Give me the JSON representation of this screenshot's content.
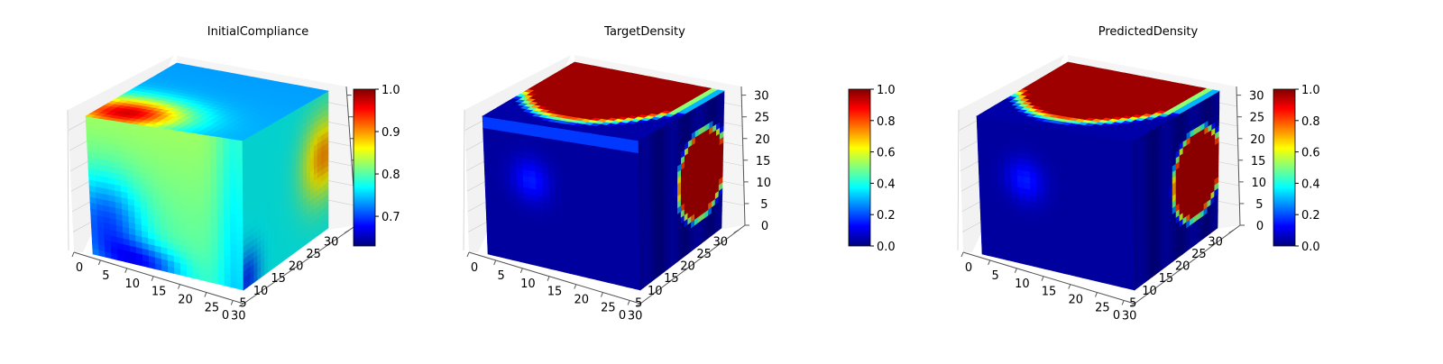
{
  "colormap": "jet",
  "colormap_stops": [
    "#00007f",
    "#0000ff",
    "#007fff",
    "#00ffff",
    "#7fff7f",
    "#ffff00",
    "#ff7f00",
    "#ff0000",
    "#7f0000"
  ],
  "axes_color": "#555555",
  "grid_color": "#cccccc",
  "pane_color": "#f2f2f2",
  "chart_data": [
    {
      "type": "heatmap",
      "title": "InitialCompliance",
      "xlim": [
        0,
        32
      ],
      "ylim": [
        0,
        32
      ],
      "zlim": [
        0,
        32
      ],
      "x_ticks": [
        "0",
        "5",
        "10",
        "15",
        "20",
        "25",
        "30"
      ],
      "y_ticks": [
        "0",
        "5",
        "10",
        "15",
        "20",
        "25",
        "30"
      ],
      "z_ticks": [],
      "colorbar": {
        "min": 0.63,
        "max": 1.0,
        "ticks": [
          "0.7",
          "0.8",
          "0.9",
          "1.0"
        ],
        "tick_values": [
          0.7,
          0.8,
          0.9,
          1.0
        ]
      },
      "field": "compliance"
    },
    {
      "type": "heatmap",
      "title": "TargetDensity",
      "xlim": [
        0,
        32
      ],
      "ylim": [
        0,
        32
      ],
      "zlim": [
        0,
        32
      ],
      "x_ticks": [
        "0",
        "5",
        "10",
        "15",
        "20",
        "25",
        "30"
      ],
      "y_ticks": [
        "0",
        "5",
        "10",
        "15",
        "20",
        "25",
        "30"
      ],
      "z_ticks": [
        "0",
        "5",
        "10",
        "15",
        "20",
        "25",
        "30"
      ],
      "colorbar": {
        "min": 0.0,
        "max": 1.0,
        "ticks": [
          "0.0",
          "0.2",
          "0.4",
          "0.6",
          "0.8",
          "1.0"
        ],
        "tick_values": [
          0.0,
          0.2,
          0.4,
          0.6,
          0.8,
          1.0
        ]
      },
      "field": "density"
    },
    {
      "type": "heatmap",
      "title": "PredictedDensity",
      "xlim": [
        0,
        32
      ],
      "ylim": [
        0,
        32
      ],
      "zlim": [
        0,
        32
      ],
      "x_ticks": [
        "0",
        "5",
        "10",
        "15",
        "20",
        "25",
        "30"
      ],
      "y_ticks": [
        "0",
        "5",
        "10",
        "15",
        "20",
        "25",
        "30"
      ],
      "z_ticks": [
        "0",
        "5",
        "10",
        "15",
        "20",
        "25",
        "30"
      ],
      "colorbar": {
        "min": 0.0,
        "max": 1.0,
        "ticks": [
          "0.0",
          "0.2",
          "0.4",
          "0.6",
          "0.8",
          "1.0"
        ],
        "tick_values": [
          0.0,
          0.2,
          0.4,
          0.6,
          0.8,
          1.0
        ]
      },
      "field": "density"
    }
  ]
}
